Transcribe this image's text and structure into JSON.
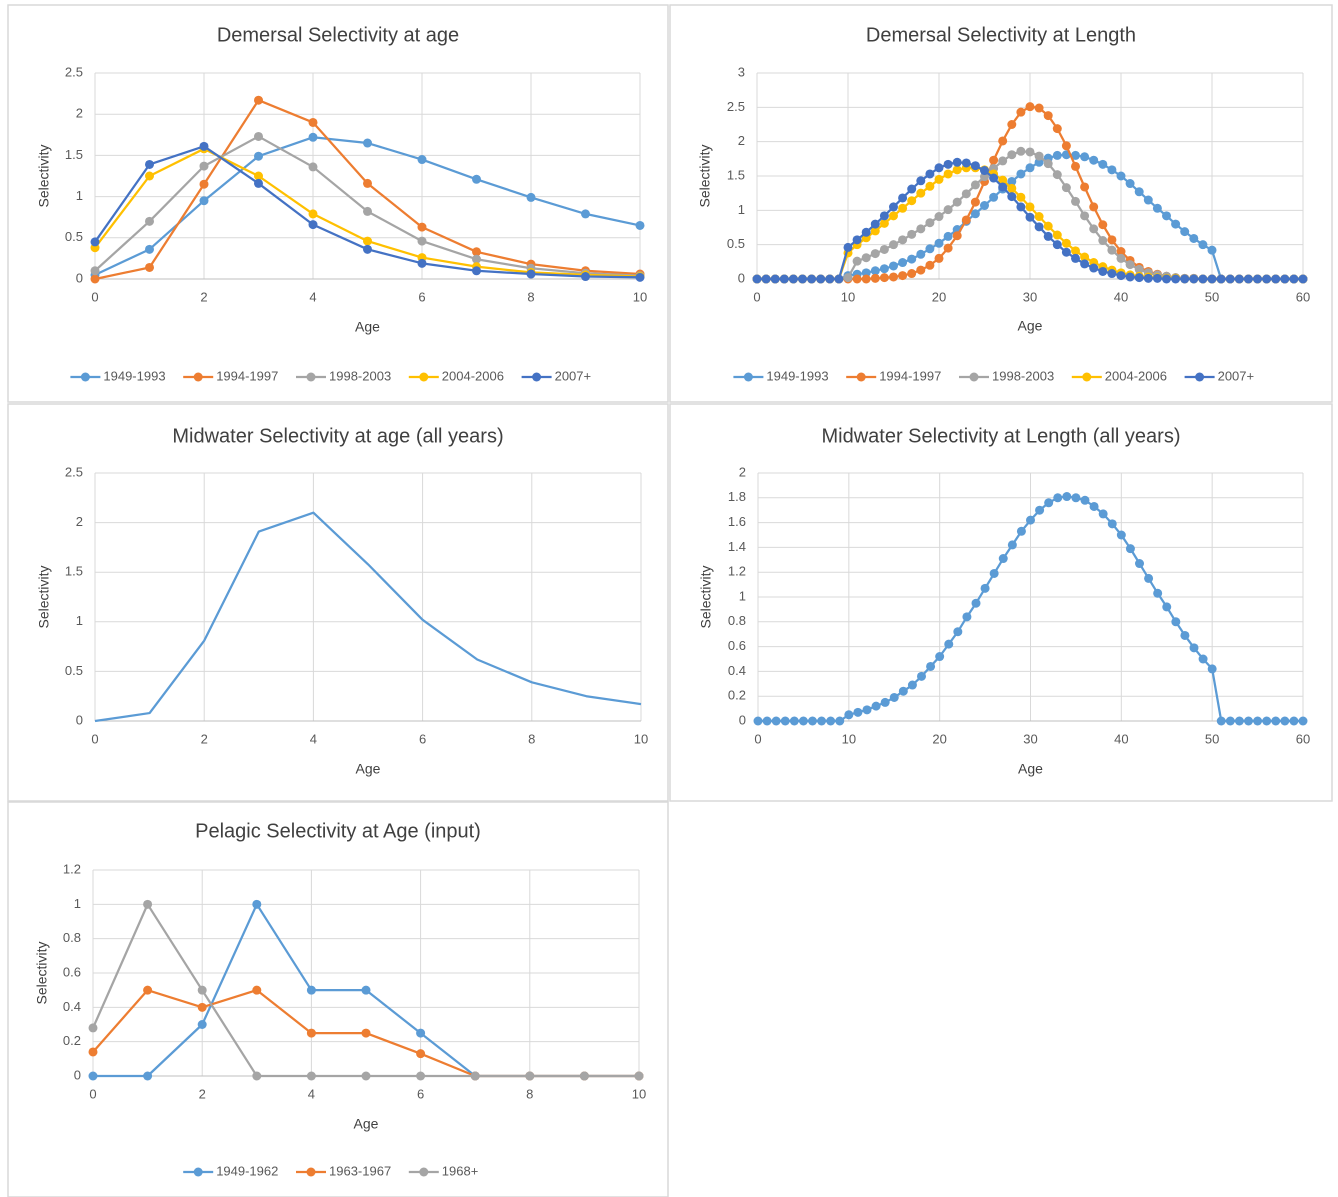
{
  "chart_data": [
    {
      "type": "line",
      "title": "Demersal Selectivity at age",
      "x_label": "Age",
      "y_label": "Selectivity",
      "x": [
        0,
        1,
        2,
        3,
        4,
        5,
        6,
        7,
        8,
        9,
        10
      ],
      "series": [
        {
          "name": "1949-1993",
          "color": "#5b9bd5",
          "values": [
            0.05,
            0.36,
            0.95,
            1.49,
            1.72,
            1.65,
            1.45,
            1.21,
            0.99,
            0.79,
            0.65
          ]
        },
        {
          "name": "1994-1997",
          "color": "#ed7d31",
          "values": [
            0,
            0.14,
            1.15,
            2.17,
            1.9,
            1.16,
            0.63,
            0.33,
            0.18,
            0.1,
            0.06
          ]
        },
        {
          "name": "1998-2003",
          "color": "#a5a5a5",
          "values": [
            0.1,
            0.7,
            1.37,
            1.73,
            1.36,
            0.82,
            0.46,
            0.24,
            0.13,
            0.07,
            0.04
          ]
        },
        {
          "name": "2004-2006",
          "color": "#ffc000",
          "values": [
            0.38,
            1.25,
            1.58,
            1.25,
            0.79,
            0.46,
            0.26,
            0.15,
            0.08,
            0.05,
            0.03
          ]
        },
        {
          "name": "2007+",
          "color": "#4472c4",
          "values": [
            0.45,
            1.39,
            1.61,
            1.16,
            0.66,
            0.36,
            0.19,
            0.1,
            0.06,
            0.03,
            0.02
          ]
        }
      ],
      "xlim": [
        0,
        10
      ],
      "xticks": [
        0,
        2,
        4,
        6,
        8,
        10
      ],
      "ylim": [
        0,
        2.5
      ],
      "yticks": [
        0,
        0.5,
        1,
        1.5,
        2,
        2.5
      ],
      "grid": true,
      "legend": "bottom"
    },
    {
      "type": "line",
      "title": "Demersal Selectivity at Length",
      "x_label": "Age",
      "y_label": "Selectivity",
      "x": [
        0,
        1,
        2,
        3,
        4,
        5,
        6,
        7,
        8,
        9,
        10,
        11,
        12,
        13,
        14,
        15,
        16,
        17,
        18,
        19,
        20,
        21,
        22,
        23,
        24,
        25,
        26,
        27,
        28,
        29,
        30,
        31,
        32,
        33,
        34,
        35,
        36,
        37,
        38,
        39,
        40,
        41,
        42,
        43,
        44,
        45,
        46,
        47,
        48,
        49,
        50,
        51,
        52,
        53,
        54,
        55,
        56,
        57,
        58,
        59,
        60
      ],
      "series": [
        {
          "name": "1949-1993",
          "color": "#5b9bd5",
          "values": [
            0,
            0,
            0,
            0,
            0,
            0,
            0,
            0,
            0,
            0,
            0.05,
            0.07,
            0.09,
            0.12,
            0.15,
            0.19,
            0.24,
            0.29,
            0.36,
            0.44,
            0.52,
            0.62,
            0.72,
            0.84,
            0.95,
            1.07,
            1.19,
            1.31,
            1.42,
            1.53,
            1.62,
            1.7,
            1.76,
            1.8,
            1.81,
            1.8,
            1.78,
            1.73,
            1.67,
            1.59,
            1.5,
            1.39,
            1.27,
            1.15,
            1.03,
            0.92,
            0.8,
            0.69,
            0.59,
            0.5,
            0.42,
            0,
            0,
            0,
            0,
            0,
            0,
            0,
            0,
            0,
            0
          ]
        },
        {
          "name": "1994-1997",
          "color": "#ed7d31",
          "values": [
            0,
            0,
            0,
            0,
            0,
            0,
            0,
            0,
            0,
            0,
            0,
            0,
            0,
            0.01,
            0.02,
            0.03,
            0.05,
            0.08,
            0.13,
            0.2,
            0.3,
            0.45,
            0.63,
            0.86,
            1.12,
            1.42,
            1.73,
            2.01,
            2.25,
            2.43,
            2.51,
            2.49,
            2.38,
            2.19,
            1.94,
            1.64,
            1.34,
            1.05,
            0.79,
            0.57,
            0.4,
            0.27,
            0.17,
            0.11,
            0.07,
            0.04,
            0.02,
            0.01,
            0.01,
            0,
            0,
            0,
            0,
            0,
            0,
            0,
            0,
            0,
            0,
            0,
            0
          ]
        },
        {
          "name": "1998-2003",
          "color": "#a5a5a5",
          "values": [
            0,
            0,
            0,
            0,
            0,
            0,
            0,
            0,
            0,
            0,
            0.02,
            0.26,
            0.31,
            0.37,
            0.43,
            0.5,
            0.57,
            0.65,
            0.73,
            0.82,
            0.91,
            1.01,
            1.12,
            1.24,
            1.37,
            1.49,
            1.61,
            1.72,
            1.81,
            1.86,
            1.85,
            1.79,
            1.68,
            1.52,
            1.33,
            1.13,
            0.92,
            0.73,
            0.56,
            0.42,
            0.3,
            0.21,
            0.14,
            0.09,
            0.06,
            0.04,
            0.02,
            0.01,
            0.01,
            0,
            0,
            0,
            0,
            0,
            0,
            0,
            0,
            0,
            0,
            0,
            0
          ]
        },
        {
          "name": "2004-2006",
          "color": "#ffc000",
          "values": [
            0,
            0,
            0,
            0,
            0,
            0,
            0,
            0,
            0,
            0,
            0.38,
            0.5,
            0.6,
            0.7,
            0.81,
            0.92,
            1.03,
            1.14,
            1.25,
            1.35,
            1.45,
            1.53,
            1.59,
            1.62,
            1.62,
            1.59,
            1.53,
            1.44,
            1.32,
            1.19,
            1.05,
            0.91,
            0.77,
            0.64,
            0.52,
            0.41,
            0.32,
            0.24,
            0.18,
            0.13,
            0.09,
            0.06,
            0.04,
            0.03,
            0.02,
            0.01,
            0.01,
            0,
            0,
            0,
            0,
            0,
            0,
            0,
            0,
            0,
            0,
            0,
            0,
            0,
            0
          ]
        },
        {
          "name": "2007+",
          "color": "#4472c4",
          "values": [
            0,
            0,
            0,
            0,
            0,
            0,
            0,
            0,
            0,
            0,
            0.46,
            0.57,
            0.68,
            0.8,
            0.92,
            1.05,
            1.18,
            1.31,
            1.43,
            1.53,
            1.62,
            1.67,
            1.7,
            1.69,
            1.65,
            1.58,
            1.47,
            1.34,
            1.2,
            1.05,
            0.9,
            0.76,
            0.62,
            0.5,
            0.39,
            0.3,
            0.22,
            0.16,
            0.11,
            0.08,
            0.05,
            0.03,
            0.02,
            0.01,
            0.01,
            0,
            0,
            0,
            0,
            0,
            0,
            0,
            0,
            0,
            0,
            0,
            0,
            0,
            0,
            0,
            0
          ]
        }
      ],
      "xlim": [
        0,
        60
      ],
      "xticks": [
        0,
        10,
        20,
        30,
        40,
        50,
        60
      ],
      "ylim": [
        0,
        3
      ],
      "yticks": [
        0,
        0.5,
        1,
        1.5,
        2,
        2.5,
        3
      ],
      "grid": true,
      "legend": "bottom"
    },
    {
      "type": "line",
      "title": "Midwater Selectivity at age (all years)",
      "x_label": "Age",
      "y_label": "Selectivity",
      "x": [
        0,
        1,
        2,
        3,
        4,
        5,
        6,
        7,
        8,
        9,
        10
      ],
      "values": [
        0,
        0.08,
        0.81,
        1.91,
        2.1,
        1.58,
        1.02,
        0.62,
        0.39,
        0.25,
        0.17
      ],
      "color": "#5b9bd5",
      "markers": false,
      "xlim": [
        0,
        10
      ],
      "xticks": [
        0,
        2,
        4,
        6,
        8,
        10
      ],
      "ylim": [
        0,
        2.5
      ],
      "yticks": [
        0,
        0.5,
        1,
        1.5,
        2,
        2.5
      ],
      "grid": true
    },
    {
      "type": "line",
      "title": "Midwater Selectivity at Length (all years)",
      "x_label": "Age",
      "y_label": "Selectivity",
      "x": [
        0,
        1,
        2,
        3,
        4,
        5,
        6,
        7,
        8,
        9,
        10,
        11,
        12,
        13,
        14,
        15,
        16,
        17,
        18,
        19,
        20,
        21,
        22,
        23,
        24,
        25,
        26,
        27,
        28,
        29,
        30,
        31,
        32,
        33,
        34,
        35,
        36,
        37,
        38,
        39,
        40,
        41,
        42,
        43,
        44,
        45,
        46,
        47,
        48,
        49,
        50,
        51,
        52,
        53,
        54,
        55,
        56,
        57,
        58,
        59,
        60
      ],
      "values": [
        0,
        0,
        0,
        0,
        0,
        0,
        0,
        0,
        0,
        0,
        0.05,
        0.07,
        0.09,
        0.12,
        0.15,
        0.19,
        0.24,
        0.29,
        0.36,
        0.44,
        0.52,
        0.62,
        0.72,
        0.84,
        0.95,
        1.07,
        1.19,
        1.31,
        1.42,
        1.53,
        1.62,
        1.7,
        1.76,
        1.8,
        1.81,
        1.8,
        1.78,
        1.73,
        1.67,
        1.59,
        1.5,
        1.39,
        1.27,
        1.15,
        1.03,
        0.92,
        0.8,
        0.69,
        0.59,
        0.5,
        0.42,
        0,
        0,
        0,
        0,
        0,
        0,
        0,
        0,
        0,
        0
      ],
      "color": "#5b9bd5",
      "markers": true,
      "xlim": [
        0,
        60
      ],
      "xticks": [
        0,
        10,
        20,
        30,
        40,
        50,
        60
      ],
      "ylim": [
        0,
        2
      ],
      "yticks": [
        0,
        0.2,
        0.4,
        0.6,
        0.8,
        1,
        1.2,
        1.4,
        1.6,
        1.8,
        2
      ],
      "grid": true
    },
    {
      "type": "line",
      "title": "Pelagic Selectivity at Age (input)",
      "x_label": "Age",
      "y_label": "Selectivity",
      "x": [
        0,
        1,
        2,
        3,
        4,
        5,
        6,
        7,
        8,
        9,
        10
      ],
      "series": [
        {
          "name": "1949-1962",
          "color": "#5b9bd5",
          "values": [
            0,
            0,
            0.3,
            1,
            0.5,
            0.5,
            0.25,
            0,
            0,
            0,
            0
          ]
        },
        {
          "name": "1963-1967",
          "color": "#ed7d31",
          "values": [
            0.14,
            0.5,
            0.4,
            0.5,
            0.25,
            0.25,
            0.13,
            0,
            0,
            0,
            0
          ]
        },
        {
          "name": "1968+",
          "color": "#a5a5a5",
          "values": [
            0.28,
            1,
            0.5,
            0,
            0,
            0,
            0,
            0,
            0,
            0,
            0
          ]
        }
      ],
      "xlim": [
        0,
        10
      ],
      "xticks": [
        0,
        2,
        4,
        6,
        8,
        10
      ],
      "ylim": [
        0,
        1.2
      ],
      "yticks": [
        0,
        0.2,
        0.4,
        0.6,
        0.8,
        1,
        1.2
      ],
      "grid": true,
      "legend": "bottom"
    }
  ]
}
